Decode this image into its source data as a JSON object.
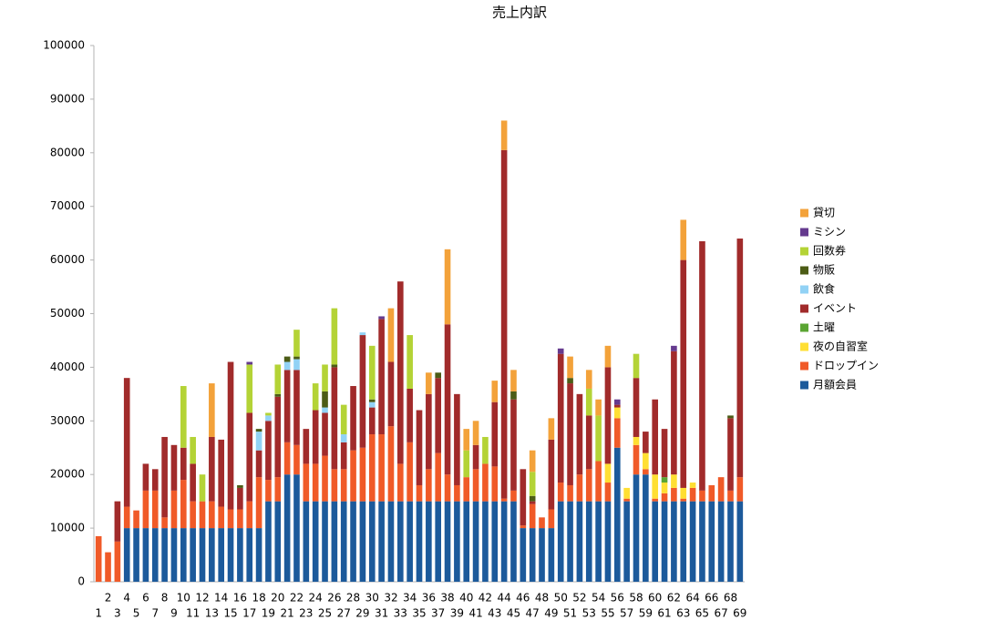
{
  "chart_data": {
    "type": "stacked_bar",
    "title": "売上内訳",
    "categories": [
      "1",
      "2",
      "3",
      "4",
      "5",
      "6",
      "7",
      "8",
      "9",
      "10",
      "11",
      "12",
      "13",
      "14",
      "15",
      "16",
      "17",
      "18",
      "19",
      "20",
      "21",
      "22",
      "23",
      "24",
      "25",
      "26",
      "27",
      "28",
      "29",
      "30",
      "31",
      "32",
      "33",
      "34",
      "35",
      "36",
      "37",
      "38",
      "39",
      "40",
      "41",
      "42",
      "43",
      "44",
      "45",
      "46",
      "47",
      "48",
      "49",
      "50",
      "51",
      "52",
      "53",
      "54",
      "55",
      "56",
      "57",
      "58",
      "59",
      "60",
      "61",
      "62",
      "63",
      "64",
      "65",
      "66",
      "67",
      "68",
      "69"
    ],
    "ylim": [
      0,
      100000
    ],
    "yticks": [
      0,
      10000,
      20000,
      30000,
      40000,
      50000,
      60000,
      70000,
      80000,
      90000,
      100000
    ],
    "grid": false,
    "legend": "right",
    "series": [
      {
        "name": "月額会員",
        "color": "#1c5a9b",
        "values": [
          0,
          0,
          0,
          10000,
          10000,
          10000,
          10000,
          10000,
          10000,
          10000,
          10000,
          10000,
          10000,
          10000,
          10000,
          10000,
          10000,
          10000,
          15000,
          15000,
          20000,
          20000,
          15000,
          15000,
          15000,
          15000,
          15000,
          15000,
          15000,
          15000,
          15000,
          15000,
          15000,
          15000,
          15000,
          15000,
          15000,
          15000,
          15000,
          15000,
          15000,
          15000,
          15000,
          15000,
          15000,
          10000,
          10000,
          10000,
          10000,
          15000,
          15000,
          15000,
          15000,
          15000,
          15000,
          25000,
          15000,
          20000,
          20000,
          15000,
          15000,
          15000,
          15000,
          15000,
          15000,
          15000,
          15000,
          15000,
          15000
        ]
      },
      {
        "name": "ドロップイン",
        "color": "#f05a28",
        "values": [
          8500,
          5500,
          7500,
          4000,
          3300,
          7000,
          7000,
          2000,
          7000,
          9000,
          5000,
          5000,
          5000,
          4000,
          3500,
          3500,
          5000,
          9500,
          4000,
          4500,
          6000,
          5500,
          7000,
          7000,
          8500,
          6000,
          6000,
          9500,
          10000,
          12500,
          12500,
          14000,
          7000,
          11000,
          3000,
          6000,
          9000,
          5000,
          3000,
          4500,
          6000,
          7000,
          6500,
          500,
          2000,
          500,
          4500,
          2000,
          3500,
          3500,
          3000,
          5000,
          6000,
          7500,
          3500,
          5500,
          500,
          5500,
          1000,
          500,
          1500,
          2500,
          500,
          2500,
          2000,
          3000,
          4500,
          2000,
          4500
        ]
      },
      {
        "name": "夜の自習室",
        "color": "#ffdf33",
        "values": [
          0,
          0,
          0,
          0,
          0,
          0,
          0,
          0,
          0,
          0,
          0,
          0,
          0,
          0,
          0,
          0,
          0,
          0,
          0,
          0,
          0,
          0,
          0,
          0,
          0,
          0,
          0,
          0,
          0,
          0,
          0,
          0,
          0,
          0,
          0,
          0,
          0,
          0,
          0,
          0,
          0,
          0,
          0,
          0,
          0,
          0,
          0,
          0,
          0,
          0,
          0,
          0,
          0,
          0,
          3500,
          2000,
          2000,
          1500,
          3000,
          4500,
          2000,
          2500,
          2000,
          1000,
          0,
          0,
          0,
          0,
          0
        ]
      },
      {
        "name": "土曜",
        "color": "#5ba533",
        "values": [
          0,
          0,
          0,
          0,
          0,
          0,
          0,
          0,
          0,
          0,
          0,
          0,
          0,
          0,
          0,
          0,
          0,
          0,
          0,
          0,
          0,
          0,
          0,
          0,
          0,
          0,
          0,
          0,
          0,
          0,
          0,
          0,
          0,
          0,
          0,
          0,
          0,
          0,
          0,
          0,
          0,
          0,
          0,
          0,
          0,
          0,
          0,
          0,
          0,
          0,
          0,
          0,
          0,
          0,
          0,
          0,
          0,
          0,
          0,
          0,
          1000,
          0,
          0,
          0,
          0,
          0,
          0,
          0,
          0
        ]
      },
      {
        "name": "イベント",
        "color": "#a12b2b",
        "values": [
          0,
          0,
          7500,
          24000,
          0,
          5000,
          4000,
          15000,
          8500,
          6000,
          7000,
          0,
          12000,
          12500,
          27500,
          4000,
          16500,
          5000,
          11000,
          15000,
          13500,
          14000,
          6500,
          10000,
          8000,
          19000,
          5000,
          12000,
          21000,
          5000,
          21500,
          12000,
          34000,
          10000,
          14000,
          14000,
          14000,
          28000,
          17000,
          0,
          4500,
          0,
          12000,
          65000,
          17000,
          10500,
          500,
          0,
          13000,
          24000,
          19000,
          15000,
          10000,
          0,
          18000,
          500,
          0,
          11000,
          4000,
          14000,
          9000,
          23000,
          42500,
          0,
          46500,
          0,
          0,
          13500,
          44500
        ]
      },
      {
        "name": "飲食",
        "color": "#92d2f5",
        "values": [
          0,
          0,
          0,
          0,
          0,
          0,
          0,
          0,
          0,
          0,
          0,
          0,
          0,
          0,
          0,
          0,
          0,
          3500,
          1000,
          0,
          1500,
          2000,
          0,
          0,
          1000,
          0,
          1500,
          0,
          500,
          1000,
          0,
          0,
          0,
          0,
          0,
          0,
          0,
          0,
          0,
          0,
          0,
          0,
          0,
          0,
          0,
          0,
          0,
          0,
          0,
          0,
          0,
          0,
          0,
          0,
          0,
          0,
          0,
          0,
          0,
          0,
          0,
          0,
          0,
          0,
          0,
          0,
          0,
          0,
          0
        ]
      },
      {
        "name": "物販",
        "color": "#4c5c16",
        "values": [
          0,
          0,
          0,
          0,
          0,
          0,
          0,
          0,
          0,
          0,
          0,
          0,
          0,
          0,
          0,
          500,
          0,
          500,
          0,
          500,
          1000,
          500,
          0,
          0,
          3000,
          500,
          0,
          0,
          0,
          500,
          0,
          0,
          0,
          0,
          0,
          0,
          1000,
          0,
          0,
          0,
          0,
          0,
          0,
          0,
          1500,
          0,
          1000,
          0,
          0,
          0,
          1000,
          0,
          0,
          0,
          0,
          0,
          0,
          0,
          0,
          0,
          0,
          0,
          0,
          0,
          0,
          0,
          0,
          500,
          0
        ]
      },
      {
        "name": "回数券",
        "color": "#b4d336",
        "values": [
          0,
          0,
          0,
          0,
          0,
          0,
          0,
          0,
          0,
          11500,
          5000,
          5000,
          0,
          0,
          0,
          0,
          9000,
          0,
          500,
          5500,
          0,
          5000,
          0,
          5000,
          5000,
          10500,
          5500,
          0,
          0,
          10000,
          0,
          0,
          0,
          10000,
          0,
          0,
          0,
          0,
          0,
          5000,
          0,
          5000,
          0,
          0,
          0,
          0,
          4500,
          0,
          0,
          0,
          0,
          0,
          5000,
          8500,
          0,
          0,
          0,
          4500,
          0,
          0,
          0,
          0,
          0,
          0,
          0,
          0,
          0,
          0,
          0
        ]
      },
      {
        "name": "ミシン",
        "color": "#653a8e",
        "values": [
          0,
          0,
          0,
          0,
          0,
          0,
          0,
          0,
          0,
          0,
          0,
          0,
          0,
          0,
          0,
          0,
          500,
          0,
          0,
          0,
          0,
          0,
          0,
          0,
          0,
          0,
          0,
          0,
          0,
          0,
          500,
          0,
          0,
          0,
          0,
          0,
          0,
          0,
          0,
          0,
          0,
          0,
          0,
          0,
          0,
          0,
          0,
          0,
          0,
          1000,
          0,
          0,
          0,
          0,
          0,
          1000,
          0,
          0,
          0,
          0,
          0,
          1000,
          0,
          0,
          0,
          0,
          0,
          0,
          0
        ]
      },
      {
        "name": "貸切",
        "color": "#f3a23a",
        "values": [
          0,
          0,
          0,
          0,
          0,
          0,
          0,
          0,
          0,
          0,
          0,
          0,
          10000,
          0,
          0,
          0,
          0,
          0,
          0,
          0,
          0,
          0,
          0,
          0,
          0,
          0,
          0,
          0,
          0,
          0,
          0,
          10000,
          0,
          0,
          0,
          4000,
          0,
          14000,
          0,
          4000,
          4500,
          0,
          4000,
          5500,
          4000,
          0,
          4000,
          0,
          4000,
          0,
          4000,
          0,
          3500,
          3000,
          4000,
          0,
          0,
          0,
          0,
          0,
          0,
          0,
          7500,
          0,
          0,
          0,
          0,
          0,
          0
        ]
      }
    ]
  }
}
